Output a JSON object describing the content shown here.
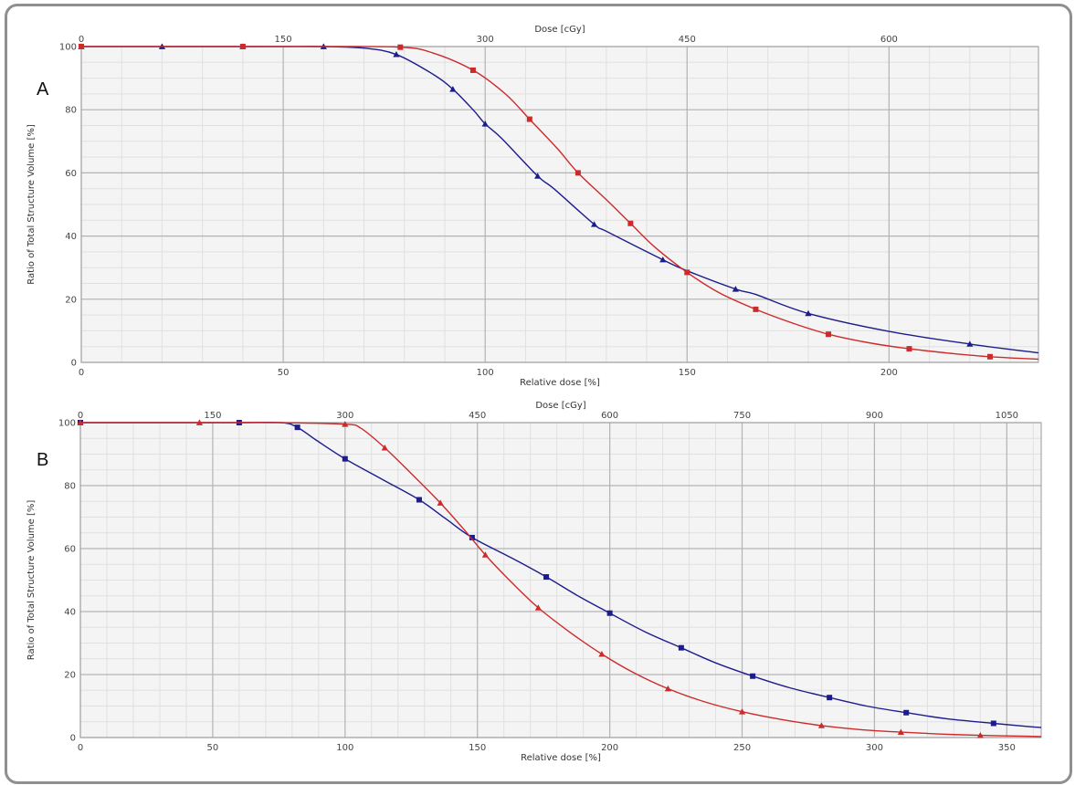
{
  "chart_data": [
    {
      "type": "line",
      "panel_label": "A",
      "xlabel": "Relative dose [%]",
      "x2label": "Dose [cGy]",
      "ylabel": "Ratio of Total Structure Volume [%]",
      "xlim": [
        0,
        237
      ],
      "ylim": [
        0,
        100
      ],
      "x_ticks": [
        0,
        50,
        100,
        150,
        200
      ],
      "x2_ticks": [
        0,
        150,
        300,
        450,
        600
      ],
      "x2_per_x": 3,
      "y_ticks": [
        0,
        20,
        40,
        60,
        80,
        100
      ],
      "grid": true,
      "series": [
        {
          "color": "#1c1c8c",
          "marker": "triangle",
          "x": [
            0,
            10,
            20,
            30,
            40,
            50,
            60,
            70,
            78,
            87,
            92,
            97,
            100,
            104,
            113,
            117,
            127,
            130,
            144,
            150,
            162,
            167,
            180,
            200,
            220,
            237
          ],
          "y": [
            100,
            100,
            100,
            100,
            100,
            100,
            100,
            99.5,
            97.5,
            91.3,
            86.5,
            80,
            75.5,
            71,
            59,
            55,
            43.7,
            41.5,
            32.5,
            29,
            23.2,
            21.5,
            15.5,
            9.8,
            5.8,
            3
          ]
        },
        {
          "color": "#cc2b2b",
          "marker": "square",
          "x": [
            0,
            20,
            40,
            59,
            79,
            87,
            97,
            105,
            111,
            118,
            123,
            130,
            136,
            142,
            150,
            158,
            167,
            176,
            185,
            195,
            205,
            215,
            225,
            237
          ],
          "y": [
            100,
            100,
            100,
            100,
            99.8,
            98,
            92.5,
            85,
            77,
            67.5,
            60,
            51.5,
            44,
            36.5,
            28.5,
            22,
            16.8,
            12.5,
            8.9,
            6.2,
            4.3,
            2.9,
            1.8,
            1
          ]
        }
      ]
    },
    {
      "type": "line",
      "panel_label": "B",
      "xlabel": "Relative dose [%]",
      "x2label": "Dose [cGy]",
      "ylabel": "Ratio of Total Structure Volume [%]",
      "xlim": [
        0,
        363
      ],
      "ylim": [
        0,
        100
      ],
      "x_ticks": [
        0,
        50,
        100,
        150,
        200,
        250,
        300,
        350
      ],
      "x2_ticks": [
        0,
        150,
        300,
        450,
        600,
        750,
        900,
        1050
      ],
      "x2_per_x": 3,
      "y_ticks": [
        0,
        20,
        40,
        60,
        80,
        100
      ],
      "grid": true,
      "series": [
        {
          "color": "#1c1c8c",
          "marker": "square",
          "x": [
            0,
            30,
            60,
            76,
            82,
            89,
            100,
            114,
            128,
            138,
            148,
            163,
            176,
            188,
            200,
            213,
            227,
            240,
            254,
            268,
            283,
            297,
            312,
            327,
            345,
            358,
            363
          ],
          "y": [
            100,
            100,
            100,
            100,
            98.5,
            94.5,
            88.5,
            82,
            75.5,
            69.5,
            63.5,
            57,
            51,
            45,
            39.5,
            33.7,
            28.5,
            23.7,
            19.5,
            15.8,
            12.7,
            10,
            7.9,
            6,
            4.5,
            3.5,
            3.2
          ]
        },
        {
          "color": "#cc2b2b",
          "marker": "triangle",
          "x": [
            0,
            15,
            45,
            75,
            100,
            106,
            115,
            126,
            136,
            145,
            153,
            163,
            173,
            185,
            197,
            209,
            222,
            236,
            250,
            265,
            280,
            295,
            310,
            325,
            340,
            358,
            363
          ],
          "y": [
            100,
            100,
            100,
            100,
            99.5,
            98.2,
            92,
            83,
            74.5,
            66,
            58,
            49.2,
            41.2,
            33.4,
            26.5,
            20.6,
            15.5,
            11.3,
            8.2,
            5.7,
            3.8,
            2.5,
            1.7,
            1.1,
            0.7,
            0.4,
            0.3
          ]
        }
      ]
    }
  ]
}
